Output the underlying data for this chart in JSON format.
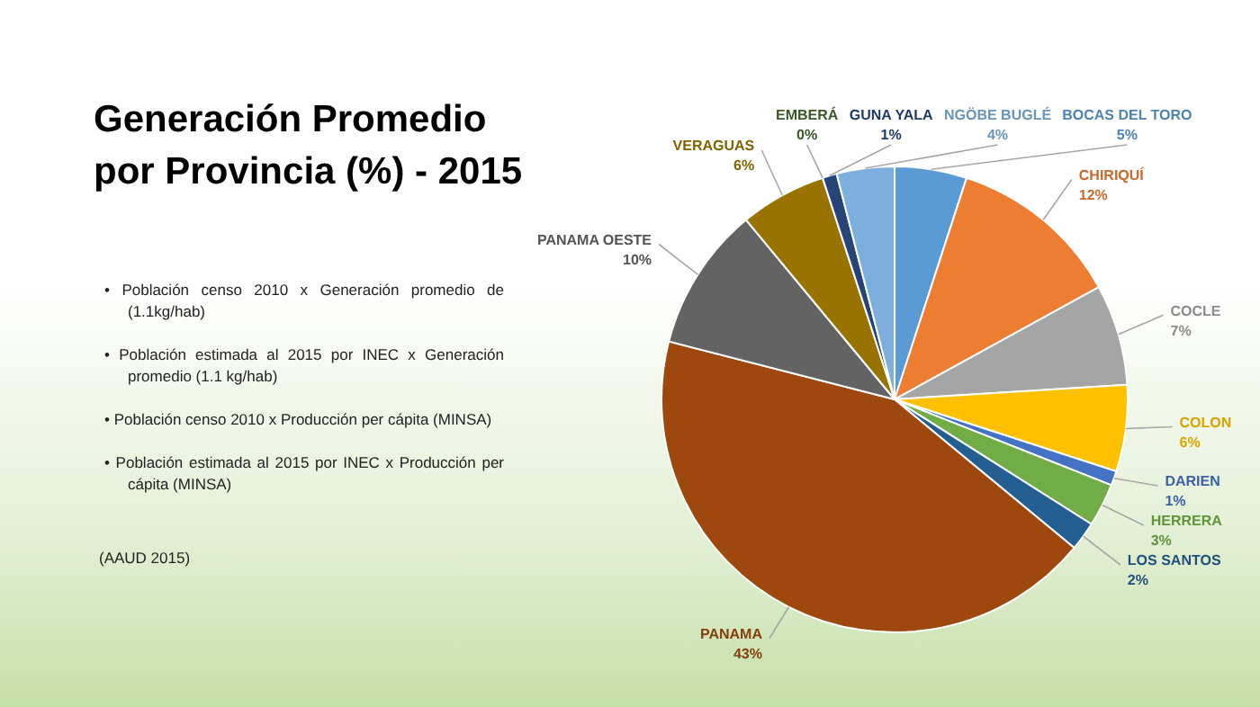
{
  "chart_data": {
    "type": "pie",
    "title": "Generación Promedio por Provincia (%) - 2015",
    "categories": [
      "BOCAS DEL TORO",
      "CHIRIQUÍ",
      "COCLE",
      "COLON",
      "DARIEN",
      "HERRERA",
      "LOS SANTOS",
      "PANAMA",
      "PANAMA OESTE",
      "VERAGUAS",
      "EMBERÁ",
      "GUNA YALA",
      "NGÖBE BUGLÉ"
    ],
    "values": [
      5,
      12,
      7,
      6,
      1,
      3,
      2,
      43,
      10,
      6,
      0,
      1,
      4
    ],
    "value_labels": [
      "5%",
      "12%",
      "7%",
      "6%",
      "1%",
      "3%",
      "2%",
      "43%",
      "10%",
      "6%",
      "0%",
      "1%",
      "4%"
    ],
    "colors": [
      "#5b9bd5",
      "#ed7d31",
      "#a5a5a5",
      "#ffc000",
      "#4472c4",
      "#70ad47",
      "#255e91",
      "#9e480e",
      "#636363",
      "#997300",
      "#43682b",
      "#264478",
      "#7cafdd"
    ],
    "legend": false,
    "annotations": [
      "• Población censo 2010 x Generación promedio de (1.1kg/hab)",
      "• Población estimada al 2015 por INEC x Generación promedio (1.1 kg/hab)",
      "• Población censo 2010 x Producción per cápita (MINSA)",
      "• Población estimada al 2015 por INEC x Producción per cápita (MINSA)",
      "(AAUD 2015)"
    ]
  }
}
